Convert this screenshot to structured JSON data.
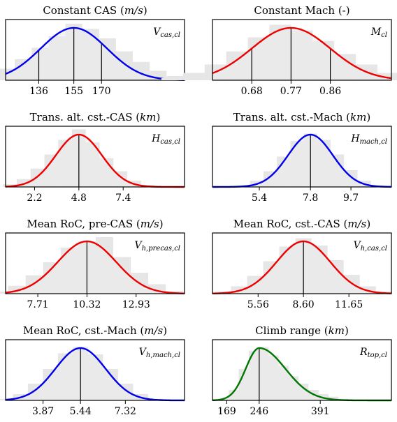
{
  "chart_data": [
    {
      "type": "area",
      "title": "Constant CAS",
      "unit": "m/s",
      "variable": {
        "base": "V",
        "sub": "cas,cl"
      },
      "color": "#0000ee",
      "mean": 155,
      "sd": 18,
      "xlim": [
        118,
        215
      ],
      "ticks": [
        136,
        155,
        170
      ],
      "tick_labels": [
        "136",
        "155",
        "170"
      ],
      "vlines": [
        136,
        155,
        170
      ],
      "hist": [
        0.02,
        0.1,
        0.22,
        0.4,
        0.62,
        0.84,
        1.08,
        0.98,
        0.8,
        0.55,
        0.35,
        0.18,
        0.08
      ]
    },
    {
      "type": "area",
      "title": "Constant Mach (-)",
      "unit": "",
      "variable": {
        "base": "M",
        "sub": "cl"
      },
      "color": "#ee0000",
      "mean": 0.77,
      "sd": 0.09,
      "xlim": [
        0.59,
        1.0
      ],
      "ticks": [
        0.68,
        0.77,
        0.86
      ],
      "tick_labels": [
        "0.68",
        "0.77",
        "0.86"
      ],
      "vlines": [
        0.68,
        0.77,
        0.86
      ],
      "hist": [
        0.04,
        0.14,
        0.3,
        0.55,
        0.82,
        1.06,
        0.95,
        0.75,
        0.5,
        0.3,
        0.14,
        0.05
      ]
    },
    {
      "type": "area",
      "title": "Trans. alt. cst.-CAS",
      "unit": "km",
      "variable": {
        "base": "H",
        "sub": "cas,cl"
      },
      "color": "#ee0000",
      "mean": 4.8,
      "sd": 1.35,
      "xlim": [
        0.5,
        11.0
      ],
      "ticks": [
        2.2,
        4.8,
        7.4
      ],
      "tick_labels": [
        "2.2",
        "4.8",
        "7.4"
      ],
      "vlines": [
        4.8
      ],
      "hist": [
        0.05,
        0.15,
        0.35,
        0.62,
        0.9,
        1.1,
        0.85,
        0.55,
        0.3,
        0.12,
        0.04
      ]
    },
    {
      "type": "area",
      "title": "Trans. alt. cst.-Mach",
      "unit": "km",
      "variable": {
        "base": "H",
        "sub": "mach,cl"
      },
      "color": "#0000ee",
      "mean": 7.8,
      "sd": 1.05,
      "xlim": [
        3.2,
        11.6
      ],
      "ticks": [
        5.4,
        7.8,
        9.7
      ],
      "tick_labels": [
        "5.4",
        "7.8",
        "9.7"
      ],
      "vlines": [
        7.8
      ],
      "hist": [
        0.03,
        0.12,
        0.3,
        0.58,
        0.88,
        1.02,
        0.9,
        0.62,
        0.32,
        0.12,
        0.03
      ]
    },
    {
      "type": "area",
      "title": "Mean RoC, pre-CAS",
      "unit": "m/s",
      "variable": {
        "base": "V",
        "sub": "h,precas,cl"
      },
      "color": "#ee0000",
      "mean": 10.32,
      "sd": 1.55,
      "xlim": [
        6.0,
        15.5
      ],
      "ticks": [
        7.71,
        10.32,
        12.93
      ],
      "tick_labels": [
        "7.71",
        "10.32",
        "12.93"
      ],
      "vlines": [
        10.32
      ],
      "hist": [
        0.04,
        0.15,
        0.35,
        0.6,
        0.88,
        1.0,
        1.08,
        0.7,
        0.4,
        0.18,
        0.05
      ]
    },
    {
      "type": "area",
      "title": "Mean RoC, cst.-CAS",
      "unit": "m/s",
      "variable": {
        "base": "V",
        "sub": "h,cas,cl"
      },
      "color": "#ee0000",
      "mean": 8.6,
      "sd": 1.8,
      "xlim": [
        2.5,
        14.5
      ],
      "ticks": [
        5.56,
        8.6,
        11.65
      ],
      "tick_labels": [
        "5.56",
        "8.60",
        "11.65"
      ],
      "vlines": [
        8.6
      ],
      "hist": [
        0.04,
        0.14,
        0.34,
        0.62,
        0.9,
        1.06,
        0.92,
        0.64,
        0.36,
        0.14,
        0.04
      ]
    },
    {
      "type": "area",
      "title": "Mean RoC, cst.-Mach",
      "unit": "m/s",
      "variable": {
        "base": "V",
        "sub": "h,mach,cl"
      },
      "color": "#0000ee",
      "mean": 5.44,
      "sd": 1.05,
      "xlim": [
        2.3,
        9.8
      ],
      "ticks": [
        3.87,
        5.44,
        7.32
      ],
      "tick_labels": [
        "3.87",
        "5.44",
        "7.32"
      ],
      "vlines": [
        5.44
      ],
      "hist": [
        0.03,
        0.12,
        0.32,
        0.6,
        0.9,
        1.02,
        0.88,
        0.6,
        0.32,
        0.12,
        0.03
      ]
    },
    {
      "type": "area",
      "title": "Climb range",
      "unit": "km",
      "variable": {
        "base": "R",
        "sub": "top,cl"
      },
      "color": "#007700",
      "skewed": true,
      "mean": 246,
      "sd_left": 32,
      "sd_right": 62,
      "xlim": [
        135,
        560
      ],
      "ticks": [
        169,
        246,
        391
      ],
      "tick_labels": [
        "169",
        "246",
        "391"
      ],
      "vlines": [
        246
      ],
      "hist": [
        0.02,
        0.2,
        0.6,
        0.95,
        1.02,
        0.86,
        0.66,
        0.46,
        0.32,
        0.2,
        0.12,
        0.07,
        0.03,
        0.01
      ]
    }
  ]
}
